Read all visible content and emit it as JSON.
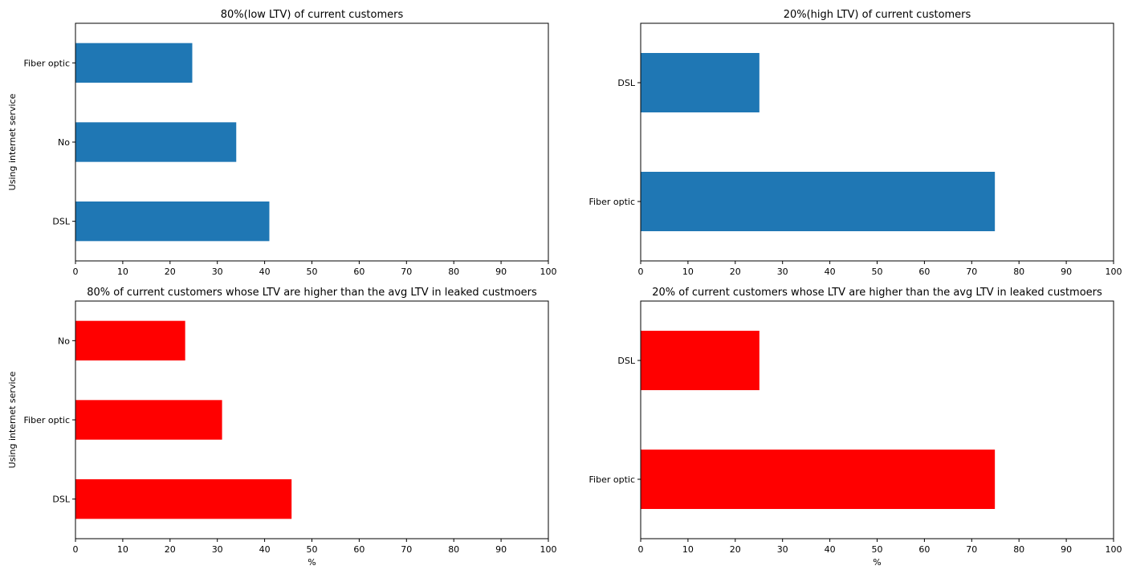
{
  "chart_data": [
    {
      "type": "bar",
      "orientation": "horizontal",
      "title": "80%(low LTV) of current customers",
      "ylabel": "Using internet service",
      "xlabel": "",
      "categories": [
        "DSL",
        "No",
        "Fiber optic"
      ],
      "values": [
        41.0,
        34.0,
        24.7
      ],
      "xlim": [
        0,
        100
      ],
      "xticks": [
        "0",
        "10",
        "20",
        "30",
        "40",
        "50",
        "60",
        "70",
        "80",
        "90",
        "100"
      ],
      "color": "#1f77b4",
      "grid": false
    },
    {
      "type": "bar",
      "orientation": "horizontal",
      "title": "20%(high LTV) of current customers",
      "ylabel": "",
      "xlabel": "",
      "categories": [
        "Fiber optic",
        "DSL"
      ],
      "values": [
        74.9,
        25.1
      ],
      "xlim": [
        0,
        100
      ],
      "xticks": [
        "0",
        "10",
        "20",
        "30",
        "40",
        "50",
        "60",
        "70",
        "80",
        "90",
        "100"
      ],
      "color": "#1f77b4",
      "grid": false
    },
    {
      "type": "bar",
      "orientation": "horizontal",
      "title": "80% of current customers whose LTV are higher than the avg LTV in leaked custmoers",
      "ylabel": "Using internet service",
      "xlabel": "%",
      "categories": [
        "DSL",
        "Fiber optic",
        "No"
      ],
      "values": [
        45.7,
        31.0,
        23.2
      ],
      "xlim": [
        0,
        100
      ],
      "xticks": [
        "0",
        "10",
        "20",
        "30",
        "40",
        "50",
        "60",
        "70",
        "80",
        "90",
        "100"
      ],
      "color": "#ff0000",
      "grid": false
    },
    {
      "type": "bar",
      "orientation": "horizontal",
      "title": "20% of current customers whose LTV are higher than the avg LTV in leaked custmoers",
      "ylabel": "",
      "xlabel": "%",
      "categories": [
        "Fiber optic",
        "DSL"
      ],
      "values": [
        74.9,
        25.1
      ],
      "xlim": [
        0,
        100
      ],
      "xticks": [
        "0",
        "10",
        "20",
        "30",
        "40",
        "50",
        "60",
        "70",
        "80",
        "90",
        "100"
      ],
      "color": "#ff0000",
      "grid": false
    }
  ]
}
